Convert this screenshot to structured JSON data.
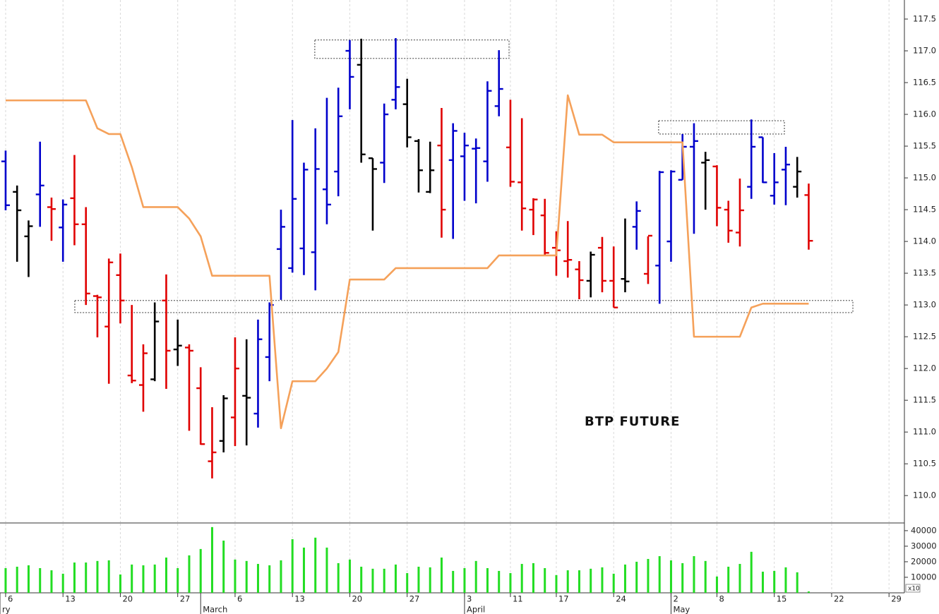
{
  "chart_data": [
    {
      "type": "ohlc",
      "title": "BTP FUTURE",
      "open": [
        115.26,
        114.78,
        114.08,
        114.74,
        114.54,
        114.22,
        114.68,
        114.27,
        113.14,
        112.66,
        113.47,
        111.89,
        111.74,
        111.83,
        113.07,
        112.3,
        112.33,
        111.69,
        110.54,
        110.86,
        111.23,
        111.57,
        111.29,
        112.18,
        113.88,
        113.58,
        113.89,
        113.83,
        114.82,
        115.1,
        117.0,
        116.78,
        115.31,
        115.24,
        116.23,
        116.16,
        115.58,
        114.78,
        115.51,
        115.28,
        115.34,
        115.46,
        115.26,
        116.13,
        115.48,
        114.93,
        114.5,
        114.41,
        113.9,
        113.69,
        113.56,
        113.38,
        113.9,
        113.38,
        113.41,
        114.23,
        113.49,
        113.62,
        114.0,
        114.97,
        115.49,
        115.24,
        115.18,
        114.5,
        114.14,
        114.86,
        115.64,
        114.72,
        115.13,
        114.86,
        114.73
      ],
      "high": [
        115.43,
        114.88,
        114.33,
        115.57,
        114.69,
        114.66,
        115.36,
        114.54,
        113.16,
        113.73,
        113.81,
        113.0,
        112.38,
        113.04,
        113.48,
        112.77,
        112.38,
        112.02,
        111.39,
        111.58,
        112.49,
        112.46,
        112.77,
        113.04,
        114.5,
        115.91,
        115.24,
        115.78,
        116.26,
        116.42,
        117.17,
        117.19,
        115.31,
        116.17,
        117.2,
        116.56,
        115.61,
        115.57,
        116.1,
        115.86,
        115.71,
        115.62,
        116.52,
        117.01,
        116.23,
        115.94,
        114.68,
        114.67,
        114.16,
        114.32,
        113.69,
        113.84,
        114.07,
        113.92,
        114.36,
        114.63,
        114.08,
        115.11,
        115.12,
        115.69,
        115.86,
        115.41,
        115.2,
        114.64,
        114.99,
        115.92,
        115.64,
        115.39,
        115.49,
        115.33,
        114.91
      ],
      "low": [
        114.49,
        113.68,
        113.44,
        114.23,
        114.01,
        113.68,
        113.94,
        113.0,
        112.49,
        111.76,
        112.71,
        111.77,
        111.32,
        111.8,
        111.68,
        112.04,
        111.02,
        110.8,
        110.27,
        110.68,
        110.78,
        110.79,
        111.07,
        111.8,
        113.08,
        113.51,
        113.47,
        113.23,
        114.27,
        114.71,
        116.08,
        115.24,
        114.17,
        114.92,
        116.08,
        115.48,
        114.77,
        114.76,
        114.06,
        114.04,
        114.64,
        114.6,
        114.94,
        115.97,
        114.86,
        114.17,
        114.1,
        113.79,
        113.46,
        113.43,
        113.09,
        113.12,
        113.2,
        112.96,
        113.2,
        113.87,
        113.33,
        113.02,
        113.68,
        114.97,
        114.12,
        114.5,
        114.24,
        113.98,
        113.92,
        114.67,
        114.92,
        114.58,
        114.57,
        114.69,
        113.87
      ],
      "close": [
        114.57,
        114.49,
        114.24,
        114.88,
        114.51,
        114.58,
        114.27,
        113.18,
        113.12,
        113.67,
        113.07,
        111.81,
        112.24,
        112.74,
        112.28,
        112.36,
        112.28,
        110.81,
        110.68,
        111.53,
        112.0,
        111.54,
        112.46,
        113.0,
        114.23,
        114.67,
        115.13,
        115.14,
        114.58,
        115.97,
        116.59,
        115.37,
        115.14,
        116.0,
        116.43,
        115.64,
        115.12,
        115.12,
        114.5,
        115.74,
        115.51,
        115.47,
        116.37,
        116.4,
        114.94,
        114.52,
        114.66,
        113.82,
        113.86,
        113.71,
        113.39,
        113.79,
        113.38,
        112.96,
        113.37,
        114.48,
        114.09,
        115.09,
        115.1,
        115.49,
        115.58,
        115.28,
        114.53,
        114.17,
        114.49,
        115.49,
        114.93,
        114.93,
        115.21,
        115.1,
        114.01
      ],
      "bar_colors": [
        "#0000cc",
        "#000000",
        "#000000",
        "#0000cc",
        "#e00000",
        "#0000cc",
        "#e00000",
        "#e00000",
        "#e00000",
        "#e00000",
        "#e00000",
        "#e00000",
        "#e00000",
        "#000000",
        "#e00000",
        "#000000",
        "#e00000",
        "#e00000",
        "#e00000",
        "#000000",
        "#e00000",
        "#000000",
        "#0000cc",
        "#0000cc",
        "#0000cc",
        "#0000cc",
        "#0000cc",
        "#0000cc",
        "#0000cc",
        "#0000cc",
        "#0000cc",
        "#000000",
        "#000000",
        "#0000cc",
        "#0000cc",
        "#000000",
        "#000000",
        "#000000",
        "#e00000",
        "#0000cc",
        "#0000cc",
        "#0000cc",
        "#0000cc",
        "#0000cc",
        "#e00000",
        "#e00000",
        "#e00000",
        "#e00000",
        "#e00000",
        "#e00000",
        "#e00000",
        "#000000",
        "#e00000",
        "#e00000",
        "#000000",
        "#0000cc",
        "#e00000",
        "#0000cc",
        "#0000cc",
        "#0000cc",
        "#0000cc",
        "#000000",
        "#e00000",
        "#e00000",
        "#e00000",
        "#0000cc",
        "#0000cc",
        "#0000cc",
        "#0000cc",
        "#000000",
        "#e00000"
      ],
      "line": {
        "color": "#f5a15a",
        "values": [
          116.22,
          116.22,
          116.22,
          116.22,
          116.22,
          116.22,
          116.22,
          116.22,
          115.78,
          115.69,
          115.69,
          115.17,
          114.54,
          114.54,
          114.54,
          114.54,
          114.36,
          114.08,
          113.46,
          113.46,
          113.46,
          113.46,
          113.46,
          113.46,
          111.06,
          111.8,
          111.8,
          111.8,
          112.0,
          112.26,
          113.4,
          113.4,
          113.4,
          113.4,
          113.58,
          113.58,
          113.58,
          113.58,
          113.58,
          113.58,
          113.58,
          113.58,
          113.58,
          113.78,
          113.78,
          113.78,
          113.78,
          113.78,
          113.78,
          116.3,
          115.68,
          115.68,
          115.68,
          115.56,
          115.56,
          115.56,
          115.56,
          115.56,
          115.56,
          115.56,
          112.5,
          112.5,
          112.5,
          112.5,
          112.5,
          112.96,
          113.02,
          113.02,
          113.02,
          113.02,
          113.02
        ]
      },
      "zones": [
        {
          "x": [
            26.95,
            43.88
          ],
          "y": [
            116.88,
            117.17
          ]
        },
        {
          "x": [
            56.92,
            67.88
          ],
          "y": [
            115.69,
            115.9
          ]
        },
        {
          "x": [
            6.03,
            73.85
          ],
          "y": [
            112.88,
            113.07
          ]
        }
      ],
      "ylim": [
        109.58,
        117.8
      ],
      "yticks": [
        {
          "value": 110,
          "label": "110.0"
        },
        110.5,
        {
          "value": 111,
          "label": "111.0"
        },
        111.5,
        {
          "value": 112,
          "label": "112.0"
        },
        112.5,
        {
          "value": 113,
          "label": "113.0"
        },
        113.5,
        {
          "value": 114,
          "label": "114.0"
        },
        114.5,
        {
          "value": 115,
          "label": "115.0"
        },
        115.5,
        {
          "value": 116,
          "label": "116.0"
        },
        116.5,
        {
          "value": 117,
          "label": "117.0"
        },
        117.5
      ],
      "xlim": [
        -0.49,
        78.28
      ],
      "xticks": [
        {
          "value": 0,
          "label": "6"
        },
        {
          "value": 5,
          "label": "13"
        },
        {
          "value": 10,
          "label": "20"
        },
        {
          "value": 15,
          "label": "27"
        },
        {
          "value": 20,
          "label": "6"
        },
        {
          "value": 25,
          "label": "13"
        },
        {
          "value": 30,
          "label": "20"
        },
        {
          "value": 35,
          "label": "27"
        },
        {
          "value": 40,
          "label": "3"
        },
        {
          "value": 44,
          "label": "11"
        },
        {
          "value": 48,
          "label": "17"
        },
        {
          "value": 53,
          "label": "24"
        },
        {
          "value": 58,
          "label": "2"
        },
        {
          "value": 62,
          "label": "8"
        },
        {
          "value": 67,
          "label": "15"
        },
        {
          "value": 72,
          "label": "22"
        },
        {
          "value": 77,
          "label": "29"
        }
      ],
      "xticks_month": [
        {
          "value": -0.49,
          "label": "ry"
        },
        {
          "value": 17,
          "label": "March"
        },
        {
          "value": 40,
          "label": "April"
        },
        {
          "value": 58,
          "label": "May"
        }
      ],
      "grid": true
    },
    {
      "type": "bar",
      "color": "#22dd22",
      "scale_note": "x10",
      "values": [
        15900,
        16800,
        17700,
        15900,
        14500,
        12300,
        19500,
        19500,
        20500,
        20900,
        11800,
        18200,
        17700,
        18200,
        22700,
        15900,
        24100,
        28200,
        42300,
        33600,
        21400,
        20500,
        18600,
        17700,
        20900,
        34500,
        29100,
        35500,
        29100,
        19100,
        21400,
        16800,
        15500,
        15500,
        18200,
        12700,
        16800,
        16400,
        22700,
        14100,
        15900,
        20500,
        15900,
        14100,
        12700,
        18600,
        19100,
        15900,
        11400,
        14500,
        14500,
        15500,
        16400,
        12300,
        18200,
        20000,
        21800,
        23600,
        20900,
        19100,
        23600,
        20500,
        10500,
        16800,
        18600,
        26400,
        13600,
        14100,
        16400,
        13200,
        900
      ],
      "ylim": [
        0,
        44500
      ],
      "yticks": [
        10000,
        20000,
        30000,
        40000
      ]
    }
  ]
}
